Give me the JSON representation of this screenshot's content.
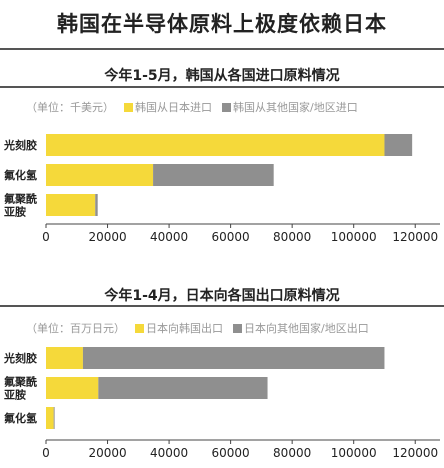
{
  "title": "韩国在半导体原料上极度依赖日本",
  "chart_data": [
    {
      "type": "bar",
      "orientation": "horizontal",
      "stacked": true,
      "title": "今年1-5月，韩国从各国进口原料情况",
      "unit_label": "（单位：千美元）",
      "categories": [
        [
          "光刻胶"
        ],
        [
          "氟化氢"
        ],
        [
          "氟聚酰",
          "亚胺"
        ]
      ],
      "series": [
        {
          "name": "韩国从日本进口",
          "color": "#f5d93a",
          "values": [
            110000,
            34800,
            16000
          ]
        },
        {
          "name": "韩国从其他国家/地区进口",
          "color": "#8f8f8f",
          "values": [
            9000,
            39200,
            800
          ]
        }
      ],
      "xlim": [
        0,
        130000
      ],
      "xticks": [
        "0",
        "20000",
        "40000",
        "60000",
        "80000",
        "100000",
        "120000"
      ],
      "xtick_values": [
        0,
        20000,
        40000,
        60000,
        80000,
        100000,
        120000
      ],
      "grid": false,
      "legend_placement": "top"
    },
    {
      "type": "bar",
      "orientation": "horizontal",
      "stacked": true,
      "title": "今年1-4月，日本向各国出口原料情况",
      "unit_label": "（单位：百万日元）",
      "categories": [
        [
          "光刻胶"
        ],
        [
          "氟聚酰",
          "亚胺"
        ],
        [
          "氟化氢"
        ]
      ],
      "series": [
        {
          "name": "日本向韩国出口",
          "color": "#f5d93a",
          "values": [
            12000,
            17000,
            2500
          ]
        },
        {
          "name": "日本向其他国家/地区出口",
          "color": "#8f8f8f",
          "values": [
            98000,
            55000,
            300
          ]
        }
      ],
      "xlim": [
        0,
        130000
      ],
      "xticks": [
        "0",
        "20000",
        "40000",
        "60000",
        "80000",
        "100000",
        "120000"
      ],
      "xtick_values": [
        0,
        20000,
        40000,
        60000,
        80000,
        100000,
        120000
      ],
      "grid": false,
      "legend_placement": "top"
    }
  ]
}
